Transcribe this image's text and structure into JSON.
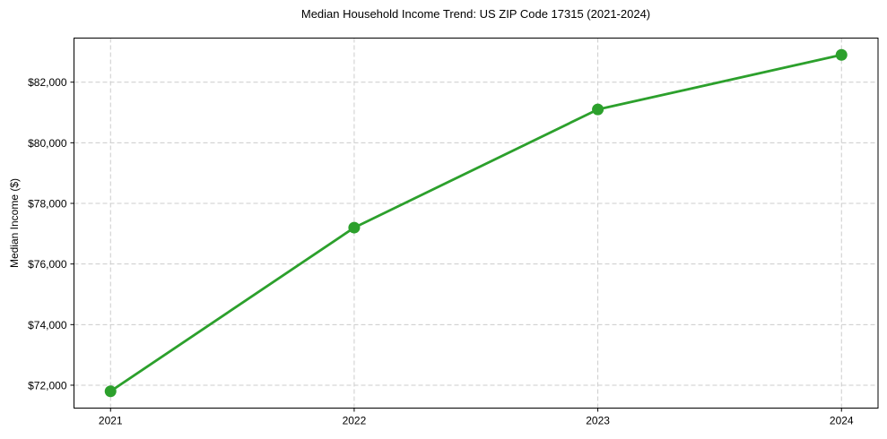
{
  "chart_data": {
    "type": "line",
    "title": "Median Household Income Trend: US ZIP Code 17315 (2021-2024)",
    "xlabel": "",
    "ylabel": "Median Income ($)",
    "categories": [
      "2021",
      "2022",
      "2023",
      "2024"
    ],
    "values": [
      71800,
      77200,
      81100,
      82900
    ],
    "yticks": [
      {
        "value": 72000,
        "label": "$72,000"
      },
      {
        "value": 74000,
        "label": "$74,000"
      },
      {
        "value": 76000,
        "label": "$76,000"
      },
      {
        "value": 78000,
        "label": "$78,000"
      },
      {
        "value": 80000,
        "label": "$80,000"
      },
      {
        "value": 82000,
        "label": "$82,000"
      }
    ],
    "ylim": [
      71245,
      83455
    ],
    "grid": "dashed-both-axes",
    "legend": "none",
    "marker": "circle",
    "colors": {
      "line": "#2ca02c",
      "grid": "#cccccc",
      "axis": "#000000",
      "text": "#000000",
      "background": "#ffffff"
    }
  }
}
